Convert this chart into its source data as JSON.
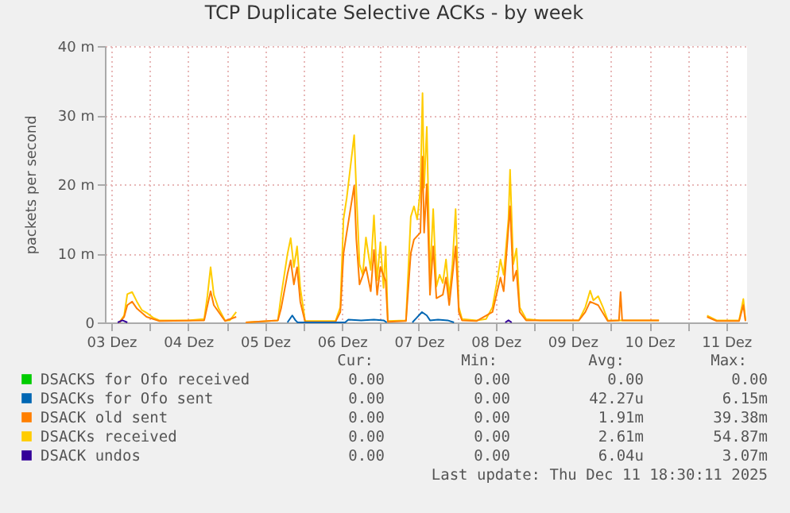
{
  "chart_data": {
    "type": "line",
    "title": "TCP Duplicate Selective ACKs - by week",
    "ylabel": "packets per second",
    "xlim": [
      "2025-12-03T10:00",
      "2025-12-11T18:30"
    ],
    "xticks": [
      {
        "value": "2025-12-03T12:00",
        "label": "03 Dez"
      },
      {
        "value": "2025-12-04T00:00",
        "label": null
      },
      {
        "value": "2025-12-04T12:00",
        "label": "04 Dez"
      },
      {
        "value": "2025-12-05T00:00",
        "label": null
      },
      {
        "value": "2025-12-05T12:00",
        "label": "05 Dez"
      },
      {
        "value": "2025-12-06T00:00",
        "label": null
      },
      {
        "value": "2025-12-06T12:00",
        "label": "06 Dez"
      },
      {
        "value": "2025-12-07T00:00",
        "label": null
      },
      {
        "value": "2025-12-07T12:00",
        "label": "07 Dez"
      },
      {
        "value": "2025-12-08T00:00",
        "label": null
      },
      {
        "value": "2025-12-08T12:00",
        "label": "08 Dez"
      },
      {
        "value": "2025-12-09T00:00",
        "label": null
      },
      {
        "value": "2025-12-09T12:00",
        "label": "09 Dez"
      },
      {
        "value": "2025-12-10T00:00",
        "label": null
      },
      {
        "value": "2025-12-10T12:00",
        "label": "10 Dez"
      },
      {
        "value": "2025-12-11T00:00",
        "label": null
      },
      {
        "value": "2025-12-11T12:00",
        "label": "11 Dez"
      }
    ],
    "ylim": [
      0,
      40
    ],
    "yticks": [
      {
        "value": 0,
        "label": "0"
      },
      {
        "value": 10,
        "label": "10 m"
      },
      {
        "value": 20,
        "label": "20 m"
      },
      {
        "value": 30,
        "label": "30 m"
      },
      {
        "value": 40,
        "label": "40 m"
      }
    ],
    "grid": true,
    "legend": "bottom left",
    "marker": "none",
    "line_style": "solid",
    "series": [
      {
        "name": "DSACKS for Ofo received",
        "color": "#00cc00"
      },
      {
        "name": "DSACKs for Ofo sent",
        "color": "#0066b3",
        "x": [
          "2025-12-05T19:00",
          "2025-12-05T20:30",
          "2025-12-05T21:30",
          "2025-12-05T22:10",
          "2025-12-06T13:00",
          "2025-12-06T14:00",
          "2025-12-06T18:00",
          "2025-12-06T22:00",
          "2025-12-07T01:00",
          "2025-12-07T02:00",
          "2025-12-07T06:00",
          "2025-12-07T10:00",
          "2025-12-07T11:00",
          "2025-12-07T13:00",
          "2025-12-07T14:30",
          "2025-12-07T15:30",
          "2025-12-07T18:00",
          "2025-12-07T21:00",
          "2025-12-07T23:00"
        ],
        "values": [
          0,
          1.0,
          0.3,
          0,
          0,
          0.4,
          0.3,
          0.4,
          0.3,
          0,
          null,
          0,
          0.5,
          1.5,
          1.0,
          0.3,
          0.4,
          0.3,
          0
        ]
      },
      {
        "name": "DSACK old sent",
        "color": "#ff7f00",
        "x": [
          "2025-12-03T14:30",
          "2025-12-03T16:00",
          "2025-12-03T17:00",
          "2025-12-03T18:30",
          "2025-12-03T20:00",
          "2025-12-03T23:00",
          "2025-12-04T03:00",
          "2025-12-04T17:00",
          "2025-12-04T19:00",
          "2025-12-04T20:00",
          "2025-12-04T23:30",
          "2025-12-05T03:00",
          "2025-12-05T04:00",
          "2025-12-05T06:00",
          "2025-12-05T16:00",
          "2025-12-05T17:00",
          "2025-12-05T19:00",
          "2025-12-05T20:00",
          "2025-12-05T21:00",
          "2025-12-05T22:00",
          "2025-12-05T23:00",
          "2025-12-06T00:30",
          "2025-12-06T10:00",
          "2025-12-06T11:30",
          "2025-12-06T12:30",
          "2025-12-06T13:30",
          "2025-12-06T15:50",
          "2025-12-06T16:30",
          "2025-12-06T17:30",
          "2025-12-06T19:30",
          "2025-12-06T21:00",
          "2025-12-06T22:00",
          "2025-12-06T23:00",
          "2025-12-07T00:00",
          "2025-12-07T01:40",
          "2025-12-07T02:20",
          "2025-12-07T08:00",
          "2025-12-07T09:30",
          "2025-12-07T10:30",
          "2025-12-07T12:30",
          "2025-12-07T13:10",
          "2025-12-07T13:40",
          "2025-12-07T14:30",
          "2025-12-07T15:30",
          "2025-12-07T16:30",
          "2025-12-07T17:30",
          "2025-12-07T19:30",
          "2025-12-07T20:30",
          "2025-12-07T21:30",
          "2025-12-07T23:30",
          "2025-12-08T00:30",
          "2025-12-08T01:30",
          "2025-12-08T06:00",
          "2025-12-08T11:00",
          "2025-12-08T13:30",
          "2025-12-08T14:30",
          "2025-12-08T16:30",
          "2025-12-08T17:30",
          "2025-12-08T18:30",
          "2025-12-08T19:30",
          "2025-12-08T21:30",
          "2025-12-09T02:00",
          "2025-12-09T14:00",
          "2025-12-09T16:00",
          "2025-12-09T17:30",
          "2025-12-09T20:00",
          "2025-12-09T23:00",
          "2025-12-10T02:30",
          "2025-12-10T03:00",
          "2025-12-10T03:30",
          "2025-12-10T15:00",
          "2025-12-10T16:00",
          "2025-12-11T06:00",
          "2025-12-11T09:00",
          "2025-12-11T16:00",
          "2025-12-11T17:20",
          "2025-12-11T18:00"
        ],
        "values": [
          0,
          0.8,
          2.5,
          3.0,
          2.0,
          0.8,
          0.2,
          0.3,
          4.5,
          2.5,
          0.2,
          0.8,
          null,
          0,
          0.3,
          2.0,
          7.0,
          9.0,
          5.5,
          8.0,
          3.0,
          0.1,
          0.1,
          1.5,
          10.0,
          13.0,
          19.8,
          12.0,
          5.5,
          8.0,
          4.5,
          10.5,
          4.0,
          8.0,
          6.0,
          0.1,
          0.2,
          10.0,
          12.0,
          13.0,
          24.0,
          13.0,
          20.0,
          4.0,
          11.0,
          3.5,
          4.0,
          6.5,
          2.5,
          11.0,
          1.5,
          0.3,
          0.2,
          1.5,
          6.5,
          4.5,
          16.8,
          6.0,
          7.5,
          1.5,
          0.3,
          0.3,
          0.3,
          1.5,
          3.0,
          2.5,
          0.2,
          0.3,
          4.4,
          0.3,
          0.3,
          null,
          0.8,
          0.2,
          0.2,
          2.5,
          0.2
        ]
      },
      {
        "name": "DSACKs received",
        "color": "#ffcc00",
        "x": [
          "2025-12-03T14:30",
          "2025-12-03T16:00",
          "2025-12-03T17:00",
          "2025-12-03T18:30",
          "2025-12-03T20:00",
          "2025-12-03T21:30",
          "2025-12-03T23:00",
          "2025-12-04T01:00",
          "2025-12-04T03:00",
          "2025-12-04T12:00",
          "2025-12-04T17:00",
          "2025-12-04T18:00",
          "2025-12-04T19:00",
          "2025-12-04T20:00",
          "2025-12-04T21:30",
          "2025-12-04T23:30",
          "2025-12-05T01:00",
          "2025-12-05T03:00",
          "2025-12-05T04:00",
          "2025-12-05T06:00",
          "2025-12-05T16:00",
          "2025-12-05T17:00",
          "2025-12-05T19:00",
          "2025-12-05T20:00",
          "2025-12-05T21:00",
          "2025-12-05T22:00",
          "2025-12-05T23:00",
          "2025-12-06T00:30",
          "2025-12-06T10:00",
          "2025-12-06T11:30",
          "2025-12-06T12:30",
          "2025-12-06T13:30",
          "2025-12-06T15:50",
          "2025-12-06T16:30",
          "2025-12-06T17:30",
          "2025-12-06T18:30",
          "2025-12-06T19:30",
          "2025-12-06T21:00",
          "2025-12-06T22:00",
          "2025-12-06T23:00",
          "2025-12-07T00:00",
          "2025-12-07T01:00",
          "2025-12-07T01:40",
          "2025-12-07T02:20",
          "2025-12-07T08:00",
          "2025-12-07T09:30",
          "2025-12-07T10:30",
          "2025-12-07T11:30",
          "2025-12-07T12:30",
          "2025-12-07T13:10",
          "2025-12-07T13:40",
          "2025-12-07T14:30",
          "2025-12-07T15:30",
          "2025-12-07T16:30",
          "2025-12-07T17:30",
          "2025-12-07T18:30",
          "2025-12-07T19:30",
          "2025-12-07T20:30",
          "2025-12-07T21:30",
          "2025-12-07T22:30",
          "2025-12-07T23:30",
          "2025-12-08T00:30",
          "2025-12-08T01:30",
          "2025-12-08T06:00",
          "2025-12-08T09:00",
          "2025-12-08T11:00",
          "2025-12-08T12:30",
          "2025-12-08T13:30",
          "2025-12-08T14:30",
          "2025-12-08T16:00",
          "2025-12-08T16:30",
          "2025-12-08T17:30",
          "2025-12-08T18:30",
          "2025-12-08T19:30",
          "2025-12-08T21:30",
          "2025-12-09T02:00",
          "2025-12-09T14:00",
          "2025-12-09T16:00",
          "2025-12-09T17:30",
          "2025-12-09T18:30",
          "2025-12-09T20:00",
          "2025-12-09T21:30",
          "2025-12-09T23:00",
          "2025-12-10T08:00",
          "2025-12-10T15:00",
          "2025-12-10T16:00",
          "2025-12-11T06:00",
          "2025-12-11T09:00",
          "2025-12-11T16:00",
          "2025-12-11T17:20",
          "2025-12-11T18:00"
        ],
        "values": [
          0,
          1.0,
          4.1,
          4.4,
          3.0,
          1.8,
          1.4,
          0.7,
          0.3,
          0.3,
          0.5,
          3.8,
          8.0,
          4.0,
          2.0,
          0.3,
          0.3,
          1.5,
          null,
          0,
          0.3,
          3.8,
          9.9,
          12.2,
          8.0,
          11.0,
          5.0,
          0.2,
          0.2,
          2.2,
          15.0,
          18.0,
          27.1,
          19.0,
          8.4,
          6.9,
          12.3,
          7.6,
          15.5,
          6.1,
          11.6,
          5.0,
          11.0,
          0.2,
          0.3,
          15.3,
          16.8,
          14.9,
          19.1,
          33.2,
          19.5,
          28.3,
          6.7,
          16.4,
          5.2,
          6.9,
          5.7,
          9.1,
          3.8,
          8.4,
          16.4,
          2.2,
          0.5,
          0.3,
          0.5,
          2.2,
          6.1,
          9.1,
          6.9,
          15.0,
          22.1,
          8.4,
          10.7,
          2.2,
          0.5,
          0.3,
          0.3,
          2.2,
          4.6,
          3.2,
          3.8,
          2.2,
          0.3,
          0.3,
          0.3,
          null,
          1.0,
          0.3,
          0.3,
          3.4,
          0.3
        ]
      },
      {
        "name": "DSACK undos",
        "color": "#330099",
        "x": [
          "2025-12-03T14:00",
          "2025-12-03T15:30",
          "2025-12-03T17:00",
          "2025-12-05T04:00",
          "2025-12-08T15:00",
          "2025-12-08T16:00",
          "2025-12-08T17:00"
        ],
        "values": [
          0,
          0.3,
          0,
          null,
          0,
          0.3,
          0
        ]
      }
    ],
    "annotations": [
      "Cur:",
      "Min:",
      "Avg:",
      "Max:",
      "0.00",
      "0.00",
      "0.00",
      "0.00",
      "0.00",
      "0.00",
      "42.27u",
      "6.15m",
      "0.00",
      "0.00",
      "1.91m",
      "39.38m",
      "0.00",
      "0.00",
      "2.61m",
      "54.87m",
      "0.00",
      "0.00",
      "6.04u",
      "3.07m",
      "Last update: Thu Dec 11 18:30:11 2025"
    ]
  }
}
